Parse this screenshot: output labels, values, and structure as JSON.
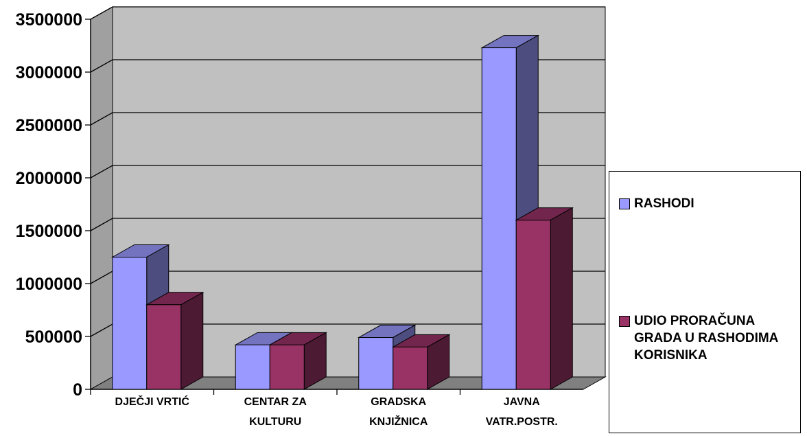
{
  "chart_data": {
    "type": "bar",
    "categories": [
      [
        "DJEČJI VRTIĆ"
      ],
      [
        "CENTAR ZA",
        "KULTURU"
      ],
      [
        "GRADSKA",
        "KNJIŽNICA"
      ],
      [
        "JAVNA",
        "VATR.POSTR."
      ]
    ],
    "series": [
      {
        "name": "RASHODI",
        "values": [
          1250000,
          420000,
          490000,
          3230000
        ],
        "color": "#9999ff"
      },
      {
        "name": "UDIO PRORAČUNA GRADA U RASHODIMA KORISNIKA",
        "values": [
          800000,
          420000,
          400000,
          1600000
        ],
        "color": "#993366"
      }
    ],
    "ylim": [
      0,
      3500000
    ],
    "yticks": [
      "0",
      "500000",
      "1000000",
      "1500000",
      "2000000",
      "2500000",
      "3000000",
      "3500000"
    ],
    "grid": true,
    "legend_position": "right",
    "title": "",
    "xlabel": "",
    "ylabel": ""
  },
  "legend": {
    "items": [
      {
        "label": "RASHODI"
      },
      {
        "label": "UDIO PRORAČUNA GRADA U RASHODIMA KORISNIKA"
      }
    ]
  }
}
